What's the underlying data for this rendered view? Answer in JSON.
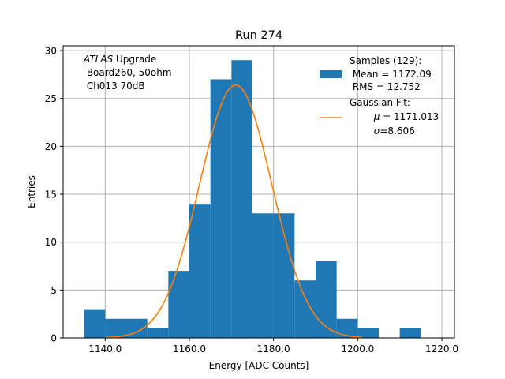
{
  "chart_data": {
    "type": "bar",
    "title": "Run 274",
    "xlabel": "Energy [ADC Counts]",
    "ylabel": "Entries",
    "xlim": [
      1130,
      1223
    ],
    "ylim": [
      0,
      30.5
    ],
    "grid": true,
    "x_ticks": [
      1140,
      1160,
      1180,
      1200,
      1220
    ],
    "x_tick_labels": [
      "1140.0",
      "1160.0",
      "1180.0",
      "1200.0",
      "1220.0"
    ],
    "y_ticks": [
      0,
      5,
      10,
      15,
      20,
      25,
      30
    ],
    "y_tick_labels": [
      "0",
      "5",
      "10",
      "15",
      "20",
      "25",
      "30"
    ],
    "bin_edges": [
      1135,
      1140,
      1145,
      1150,
      1155,
      1160,
      1165,
      1170,
      1175,
      1180,
      1185,
      1190,
      1195,
      1200,
      1205,
      1210,
      1215
    ],
    "values": [
      3,
      2,
      2,
      1,
      7,
      14,
      27,
      29,
      13,
      13,
      6,
      8,
      2,
      1,
      0,
      1
    ],
    "fit": {
      "mu": 1171.013,
      "sigma": 8.606,
      "amplitude": 26.4
    },
    "colors": {
      "hist": "#1f77b4",
      "fit": "#ff7f0e",
      "grid": "#b0b0b0"
    },
    "annotation": {
      "line1_italic": "ATLAS",
      "line1_rest": " Upgrade",
      "line2": " Board260, 50ohm",
      "line3": " Ch013 70dB"
    },
    "legend": {
      "placement": "top-right",
      "samples_label": "Samples (129):",
      "samples_mean": " Mean = 1172.09",
      "samples_rms": " RMS = 12.752",
      "fit_label": "Gaussian Fit:",
      "fit_mu_symbol": "μ",
      "fit_mu_text": " = 1171.013",
      "fit_sigma_symbol": "σ",
      "fit_sigma_text": "=8.606"
    }
  }
}
